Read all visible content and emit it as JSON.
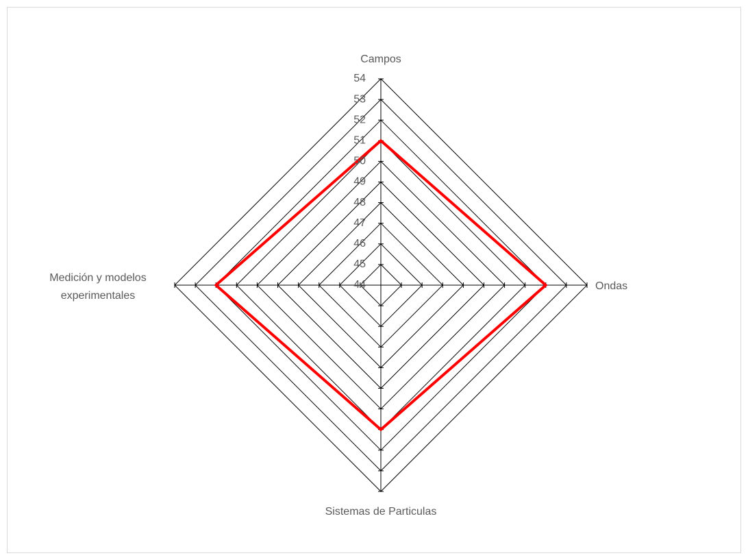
{
  "chart_data": {
    "type": "radar",
    "categories": [
      "Campos",
      "Ondas",
      "Sistemas de Particulas",
      "Medición y modelos experimentales"
    ],
    "series": [
      {
        "color": "#ff0000",
        "values": [
          51,
          52,
          51,
          52
        ]
      }
    ],
    "ylim": [
      44,
      54
    ],
    "yticks": [
      44,
      45,
      46,
      47,
      48,
      49,
      50,
      51,
      52,
      53,
      54
    ],
    "grid": true
  }
}
